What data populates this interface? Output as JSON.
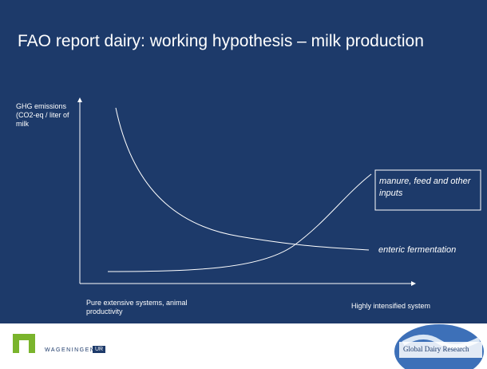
{
  "header": {
    "title": "FAO report dairy: working hypothesis – milk production"
  },
  "diagram": {
    "y_axis_label": "GHG emissions (CO2-eq / liter of milk",
    "x_axis_left_label": "Pure extensive systems, animal productivity",
    "x_axis_right_label": "Highly intensified system",
    "curves": [
      {
        "label": "enteric fermentation"
      },
      {
        "label": "manure, feed and other inputs"
      }
    ]
  },
  "footer": {
    "left_logo": "WAGENINGEN",
    "left_logo_suffix": "UR",
    "right_logo": "Global Dairy Research"
  }
}
